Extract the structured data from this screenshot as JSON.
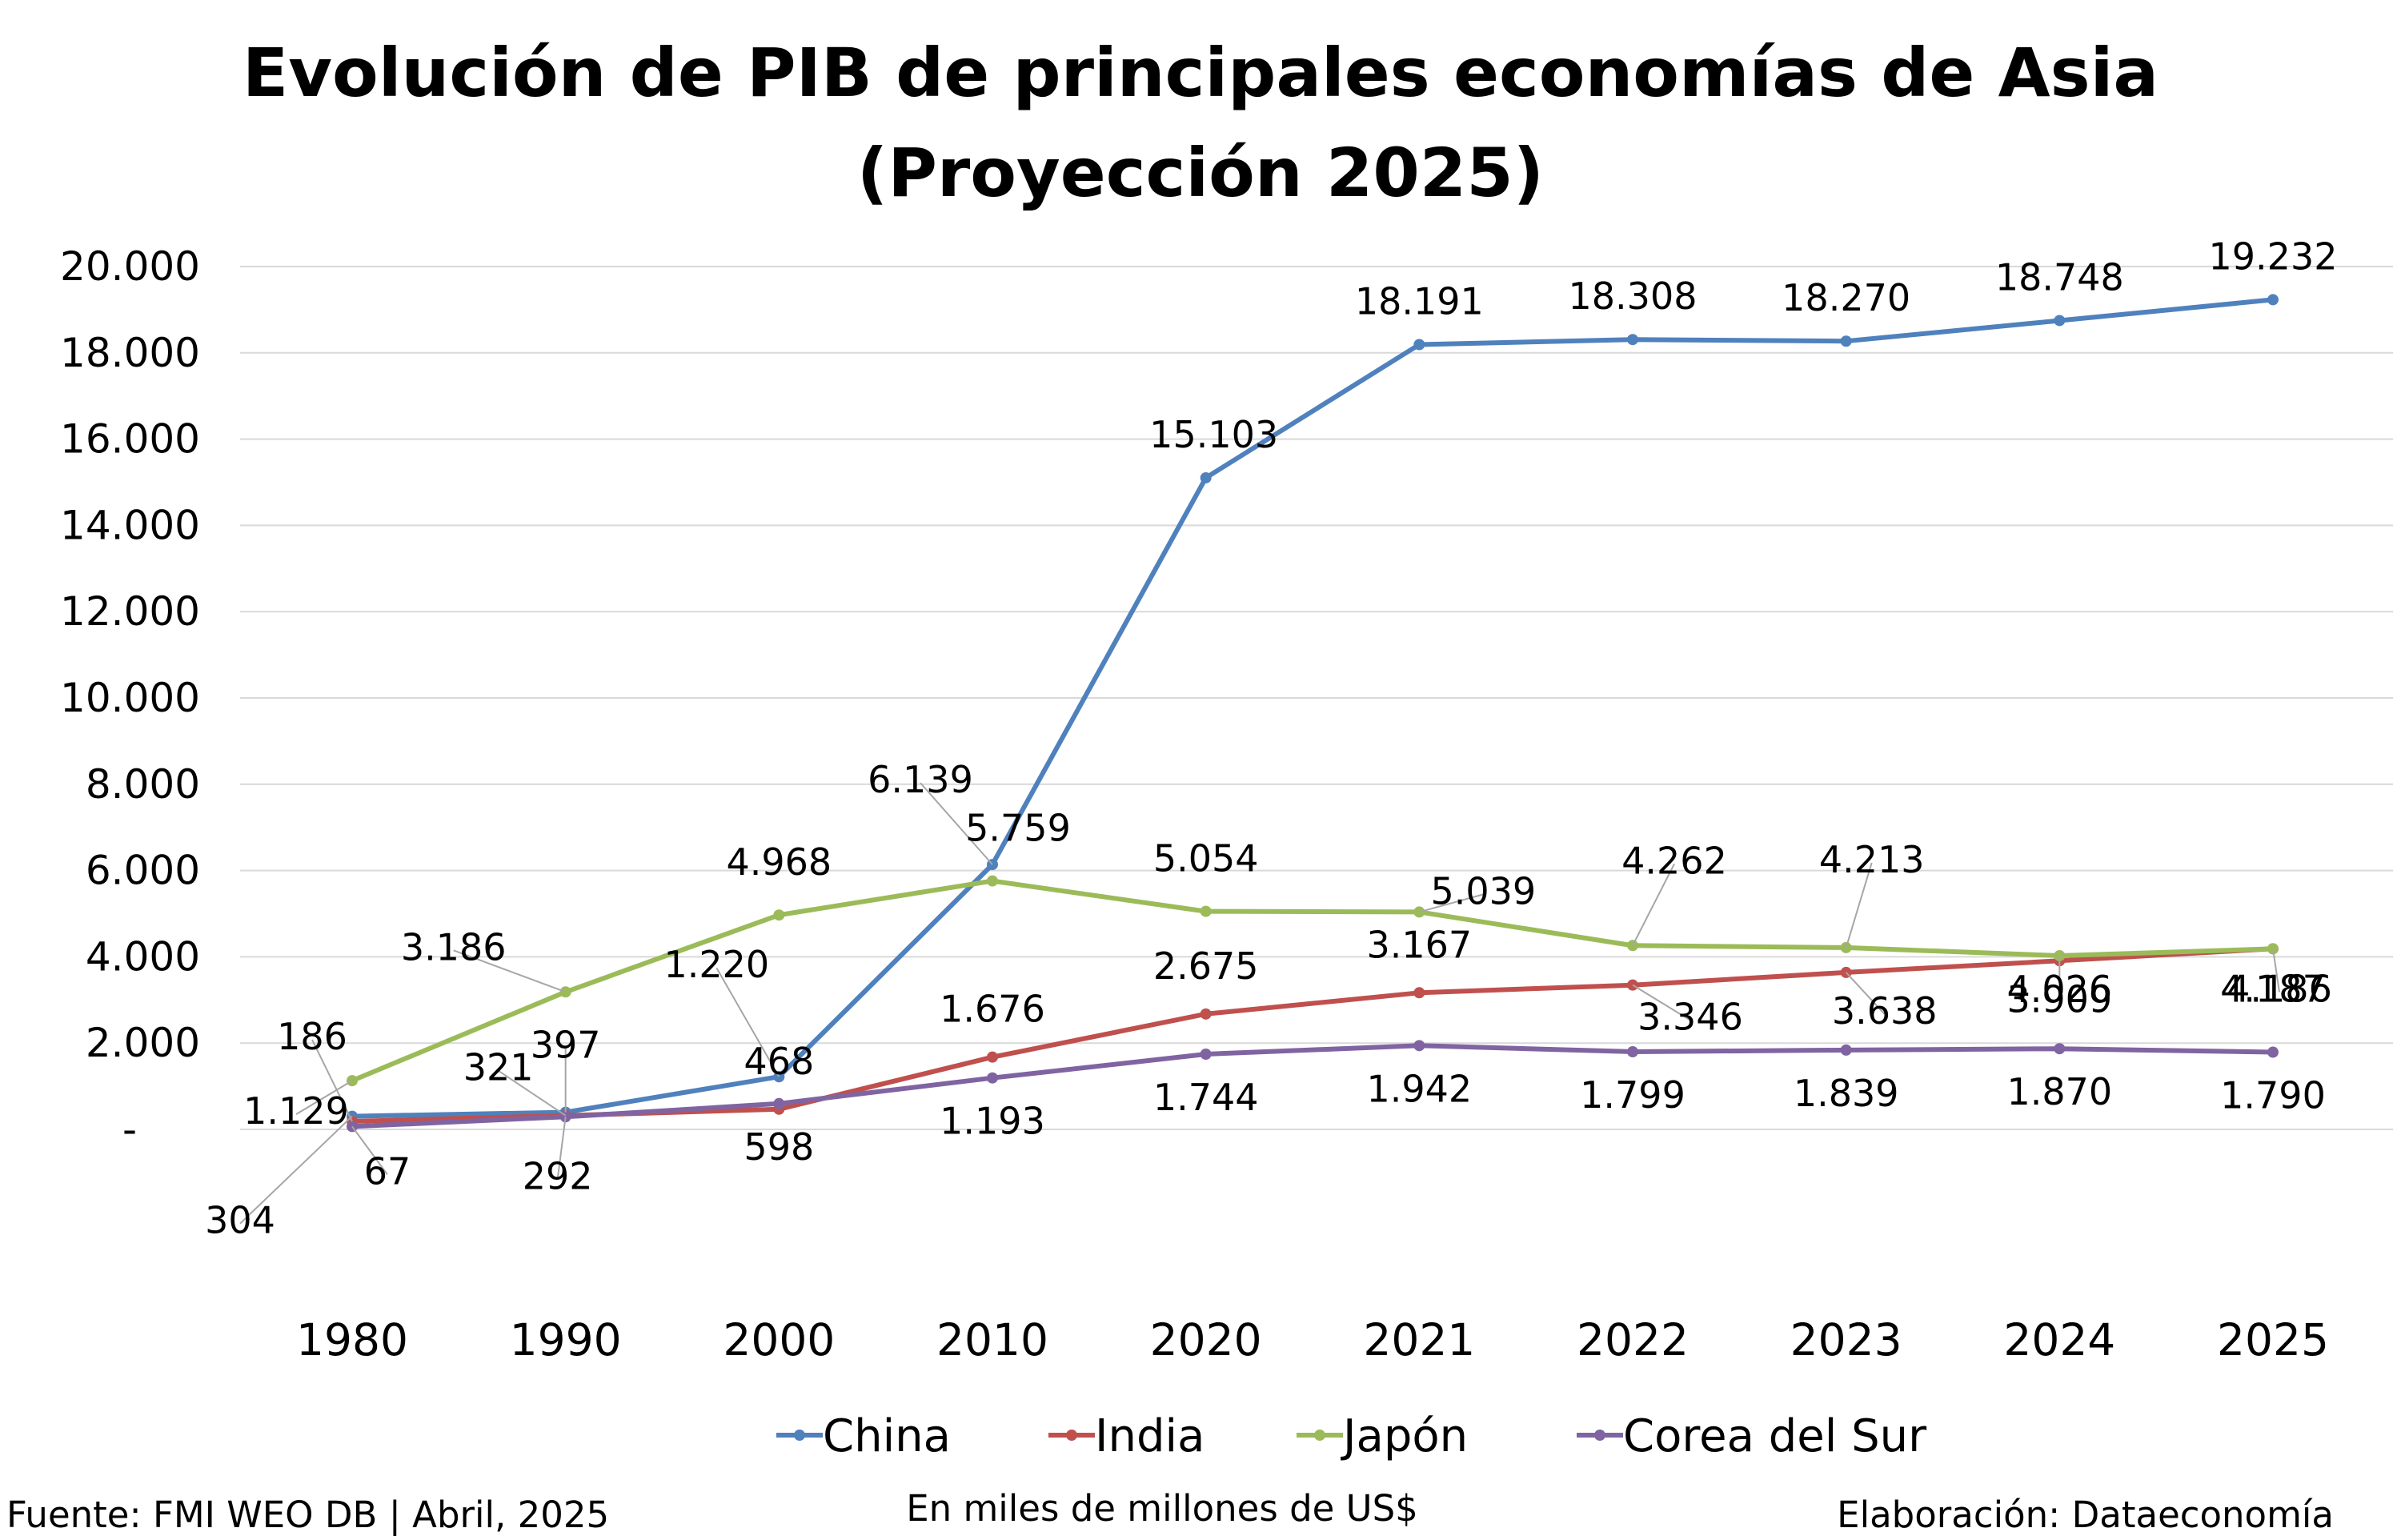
{
  "chart_data": {
    "type": "line",
    "title": "Evolución de PIB de principales economías de Asia",
    "subtitle": "(Proyección 2025)",
    "categories": [
      "1980",
      "1990",
      "2000",
      "2010",
      "2020",
      "2021",
      "2022",
      "2023",
      "2024",
      "2025"
    ],
    "y_ticks": [
      "-",
      "2.000",
      "4.000",
      "6.000",
      "8.000",
      "10.000",
      "12.000",
      "14.000",
      "16.000",
      "18.000",
      "20.000"
    ],
    "ylim": [
      0,
      20000
    ],
    "grid": true,
    "legend_position": "bottom",
    "series": [
      {
        "name": "China",
        "color": "#4F81BD",
        "values": [
          304,
          397,
          1220,
          6139,
          15103,
          18191,
          18308,
          18270,
          18748,
          19232
        ],
        "labels": [
          "304",
          "397",
          "1.220",
          "6.139",
          "15.103",
          "18.191",
          "18.308",
          "18.270",
          "18.748",
          "19.232"
        ]
      },
      {
        "name": "India",
        "color": "#C0504D",
        "values": [
          186,
          321,
          468,
          1676,
          2675,
          3167,
          3346,
          3638,
          3909,
          4187
        ],
        "labels": [
          "186",
          "321",
          "468",
          "1.676",
          "2.675",
          "3.167",
          "3.346",
          "3.638",
          "3.909",
          "4.187"
        ]
      },
      {
        "name": "Japón",
        "color": "#9BBB59",
        "values": [
          1129,
          3186,
          4968,
          5759,
          5054,
          5039,
          4262,
          4213,
          4026,
          4186
        ],
        "labels": [
          "1.129",
          "3.186",
          "4.968",
          "5.759",
          "5.054",
          "5.039",
          "4.262",
          "4.213",
          "4.026",
          "4.186"
        ]
      },
      {
        "name": "Corea del Sur",
        "color": "#8064A2",
        "values": [
          67,
          292,
          598,
          1193,
          1744,
          1942,
          1799,
          1839,
          1870,
          1790
        ],
        "labels": [
          "67",
          "292",
          "598",
          "1.193",
          "1.744",
          "1.942",
          "1.799",
          "1.839",
          "1.870",
          "1.790"
        ]
      }
    ]
  },
  "footer": {
    "source": "Fuente: FMI WEO DB | Abril, 2025",
    "units": "En miles de millones de US$",
    "credit": "Elaboración: Dataeconomía"
  }
}
